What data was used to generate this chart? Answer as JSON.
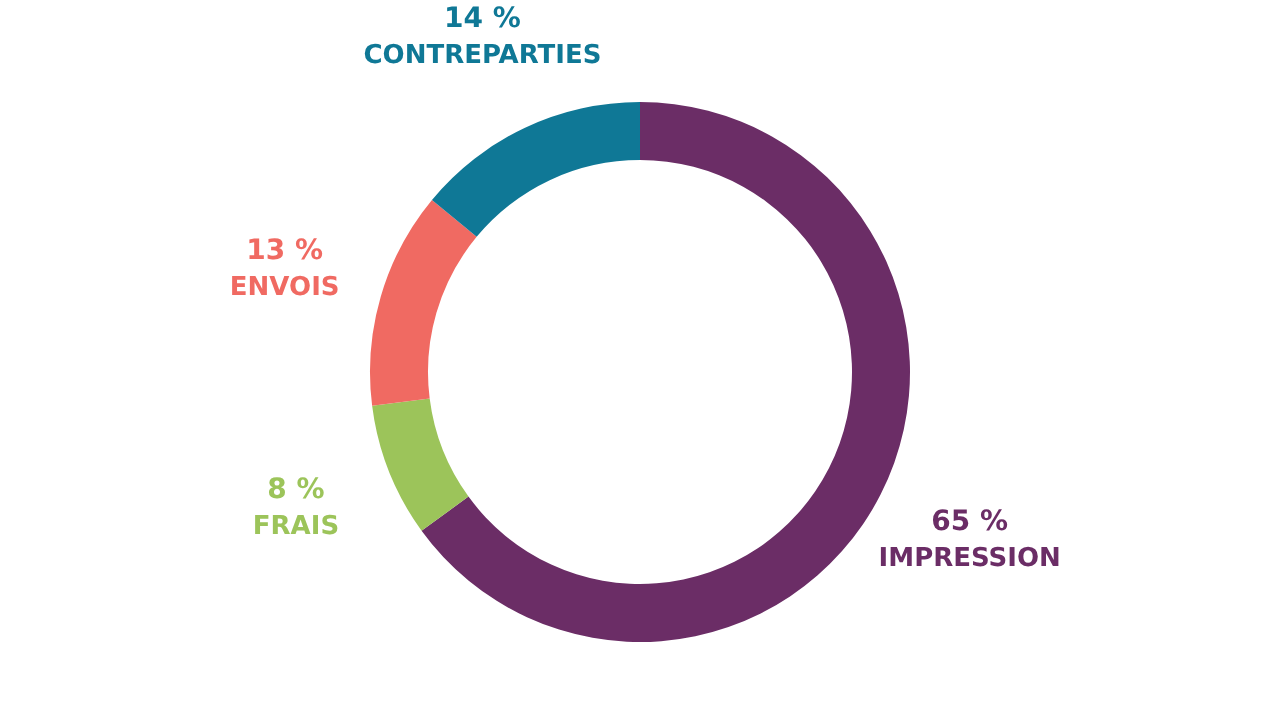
{
  "chart_data": {
    "type": "donut",
    "categories": [
      "IMPRESSION",
      "FRAIS",
      "ENVOIS",
      "CONTREPARTIES"
    ],
    "values": [
      65,
      8,
      13,
      14
    ],
    "colors": [
      "#6b2d66",
      "#9cc45a",
      "#f06a62",
      "#0f7896"
    ],
    "value_labels": [
      "65 %",
      "8 %",
      "13 %",
      "14 %"
    ]
  }
}
